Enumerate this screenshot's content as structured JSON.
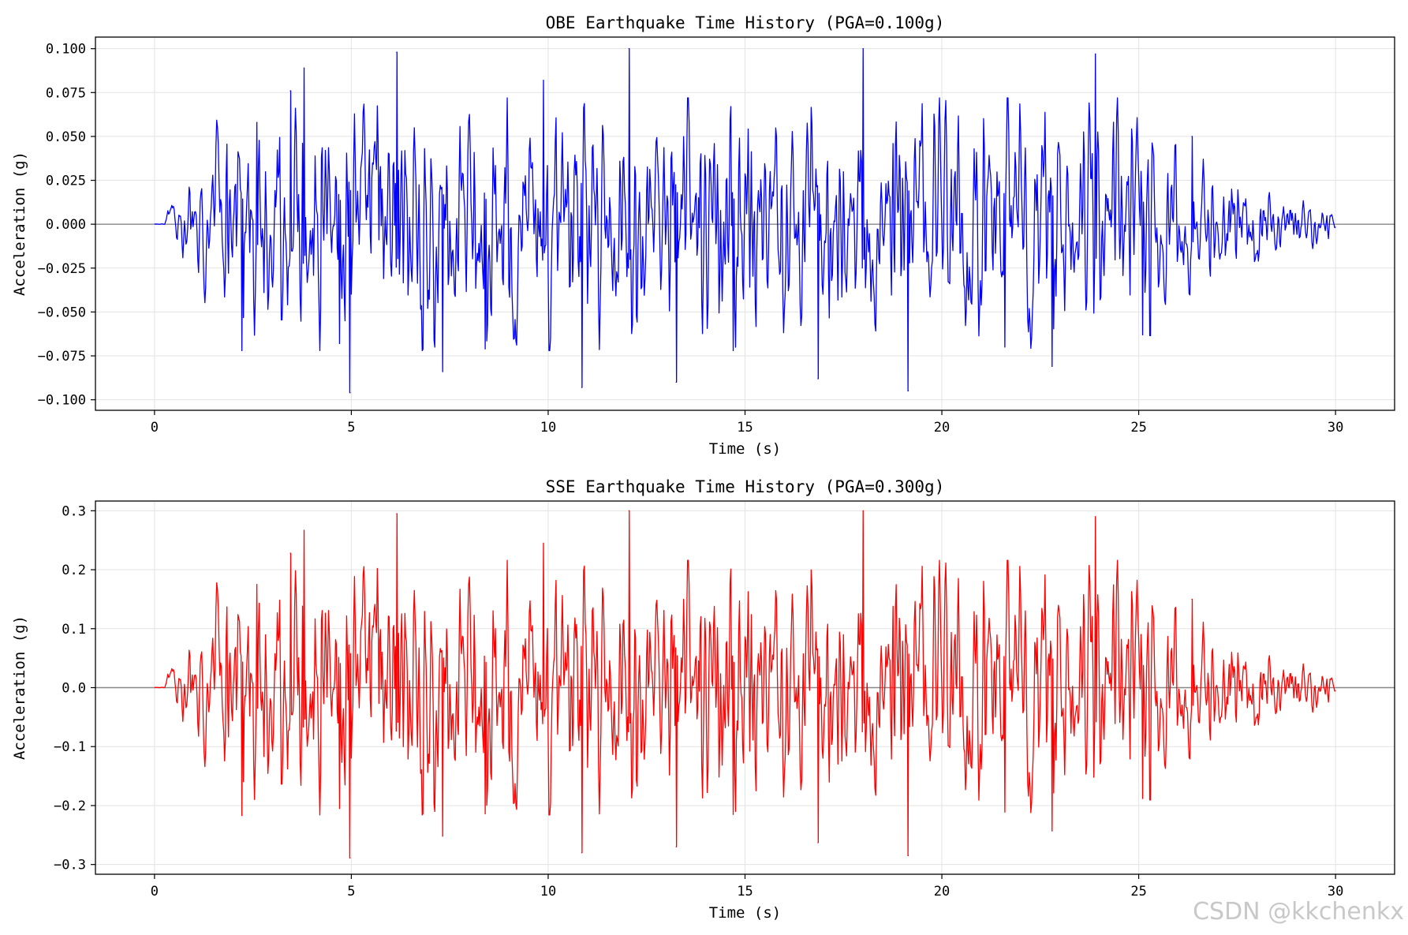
{
  "watermark": "CSDN @kkchenkx",
  "chart_data": [
    {
      "type": "line",
      "id": "obe",
      "title": "OBE Earthquake Time History (PGA=0.100g)",
      "xlabel": "Time (s)",
      "ylabel": "Acceleration (g)",
      "xlim": [
        -1.5,
        31.5
      ],
      "ylim": [
        -0.106,
        0.1066
      ],
      "grid": true,
      "xticks": [
        0,
        5,
        10,
        15,
        20,
        25,
        30
      ],
      "xtick_labels": [
        "0",
        "5",
        "10",
        "15",
        "20",
        "25",
        "30"
      ],
      "yticks": [
        -0.1,
        -0.075,
        -0.05,
        -0.025,
        0.0,
        0.025,
        0.05,
        0.075,
        0.1
      ],
      "ytick_labels": [
        "−0.100",
        "−0.075",
        "−0.050",
        "−0.025",
        "0.000",
        "0.025",
        "0.050",
        "0.075",
        "0.100"
      ],
      "color": "#0000ff",
      "pga": 0.1,
      "duration_s": 30,
      "series": [
        {
          "name": "OBE acceleration",
          "peaks": [
            [
              2.22,
              -0.072
            ],
            [
              2.6,
              0.058
            ],
            [
              3.45,
              0.076
            ],
            [
              3.8,
              0.089
            ],
            [
              4.7,
              -0.068
            ],
            [
              4.97,
              -0.096
            ],
            [
              6.15,
              0.098
            ],
            [
              7.32,
              -0.084
            ],
            [
              8.4,
              -0.071
            ],
            [
              9.88,
              0.082
            ],
            [
              10.85,
              -0.093
            ],
            [
              12.05,
              0.1
            ],
            [
              13.25,
              -0.09
            ],
            [
              14.7,
              -0.072
            ],
            [
              16.85,
              -0.088
            ],
            [
              18.0,
              0.1
            ],
            [
              19.15,
              -0.095
            ],
            [
              21.6,
              -0.07
            ],
            [
              22.8,
              -0.081
            ],
            [
              23.9,
              0.097
            ],
            [
              25.1,
              -0.063
            ],
            [
              26.35,
              0.05
            ]
          ]
        }
      ]
    },
    {
      "type": "line",
      "id": "sse",
      "title": "SSE Earthquake Time History (PGA=0.300g)",
      "xlabel": "Time (s)",
      "ylabel": "Acceleration (g)",
      "xlim": [
        -1.5,
        31.5
      ],
      "ylim": [
        -0.3165,
        0.3165
      ],
      "grid": true,
      "xticks": [
        0,
        5,
        10,
        15,
        20,
        25,
        30
      ],
      "xtick_labels": [
        "0",
        "5",
        "10",
        "15",
        "20",
        "25",
        "30"
      ],
      "yticks": [
        -0.3,
        -0.2,
        -0.1,
        0.0,
        0.1,
        0.2,
        0.3
      ],
      "ytick_labels": [
        "−0.3",
        "−0.2",
        "−0.1",
        "0.0",
        "0.1",
        "0.2",
        "0.3"
      ],
      "color": "#ff0000",
      "pga": 0.3,
      "duration_s": 30,
      "series": [
        {
          "name": "SSE acceleration",
          "peaks": [
            [
              2.22,
              -0.217
            ],
            [
              2.6,
              0.175
            ],
            [
              3.45,
              0.228
            ],
            [
              3.8,
              0.267
            ],
            [
              4.7,
              -0.205
            ],
            [
              4.97,
              -0.289
            ],
            [
              6.15,
              0.295
            ],
            [
              7.32,
              -0.252
            ],
            [
              8.4,
              -0.214
            ],
            [
              9.88,
              0.245
            ],
            [
              10.85,
              -0.28
            ],
            [
              12.05,
              0.3
            ],
            [
              13.25,
              -0.27
            ],
            [
              14.7,
              -0.215
            ],
            [
              16.85,
              -0.263
            ],
            [
              18.0,
              0.3
            ],
            [
              19.15,
              -0.285
            ],
            [
              21.6,
              -0.211
            ],
            [
              22.8,
              -0.243
            ],
            [
              23.9,
              0.29
            ],
            [
              25.1,
              -0.188
            ],
            [
              26.35,
              0.15
            ]
          ]
        }
      ]
    }
  ]
}
